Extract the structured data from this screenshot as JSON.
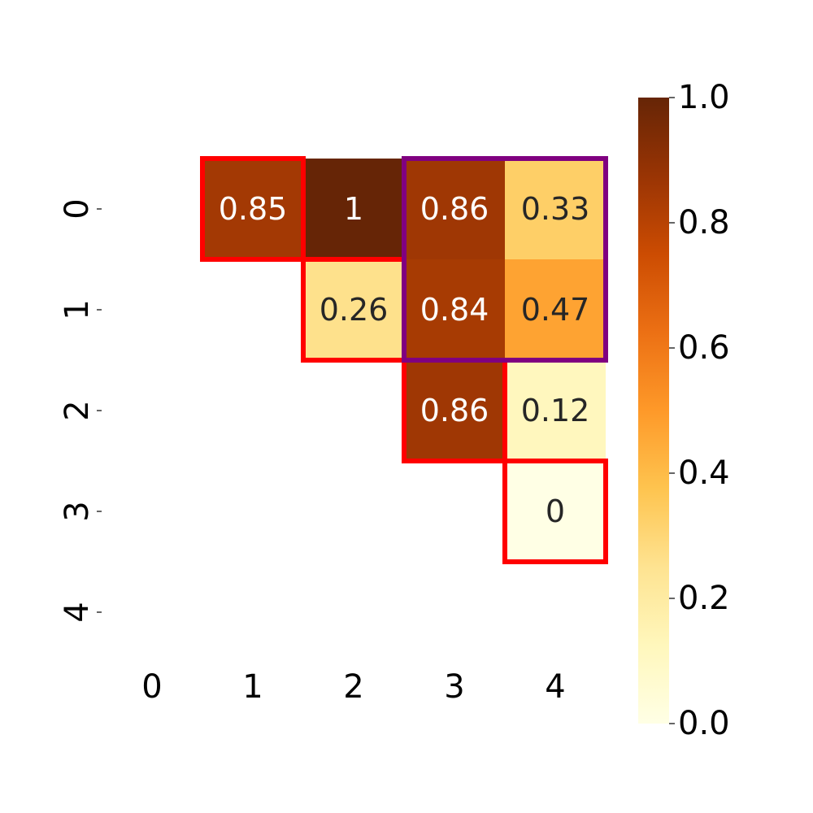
{
  "chart_data": {
    "type": "heatmap",
    "title": "",
    "xlabel": "",
    "ylabel": "",
    "x_ticks": [
      "0",
      "1",
      "2",
      "3",
      "4"
    ],
    "y_ticks": [
      "0",
      "1",
      "2",
      "3",
      "4"
    ],
    "cells": [
      {
        "row": 0,
        "col": 1,
        "value": 0.85,
        "label": "0.85"
      },
      {
        "row": 0,
        "col": 2,
        "value": 1.0,
        "label": "1"
      },
      {
        "row": 0,
        "col": 3,
        "value": 0.86,
        "label": "0.86"
      },
      {
        "row": 0,
        "col": 4,
        "value": 0.33,
        "label": "0.33"
      },
      {
        "row": 1,
        "col": 2,
        "value": 0.26,
        "label": "0.26"
      },
      {
        "row": 1,
        "col": 3,
        "value": 0.84,
        "label": "0.84"
      },
      {
        "row": 1,
        "col": 4,
        "value": 0.47,
        "label": "0.47"
      },
      {
        "row": 2,
        "col": 3,
        "value": 0.86,
        "label": "0.86"
      },
      {
        "row": 2,
        "col": 4,
        "value": 0.12,
        "label": "0.12"
      },
      {
        "row": 3,
        "col": 4,
        "value": 0.0,
        "label": "0"
      }
    ],
    "highlight_boxes": [
      {
        "color": "#ff0000",
        "rows": [
          0,
          0
        ],
        "cols": [
          1,
          1
        ]
      },
      {
        "color": "#ff0000",
        "rows": [
          1,
          1
        ],
        "cols": [
          2,
          2
        ]
      },
      {
        "color": "#ff0000",
        "rows": [
          2,
          2
        ],
        "cols": [
          3,
          3
        ]
      },
      {
        "color": "#ff0000",
        "rows": [
          3,
          3
        ],
        "cols": [
          4,
          4
        ]
      },
      {
        "color": "#800080",
        "rows": [
          0,
          1
        ],
        "cols": [
          3,
          4
        ]
      }
    ],
    "colorbar": {
      "colormap": "YlOrBr",
      "range": [
        0.0,
        1.0
      ],
      "ticks": [
        "0.0",
        "0.2",
        "0.4",
        "0.6",
        "0.8",
        "1.0"
      ]
    },
    "grid": false
  }
}
